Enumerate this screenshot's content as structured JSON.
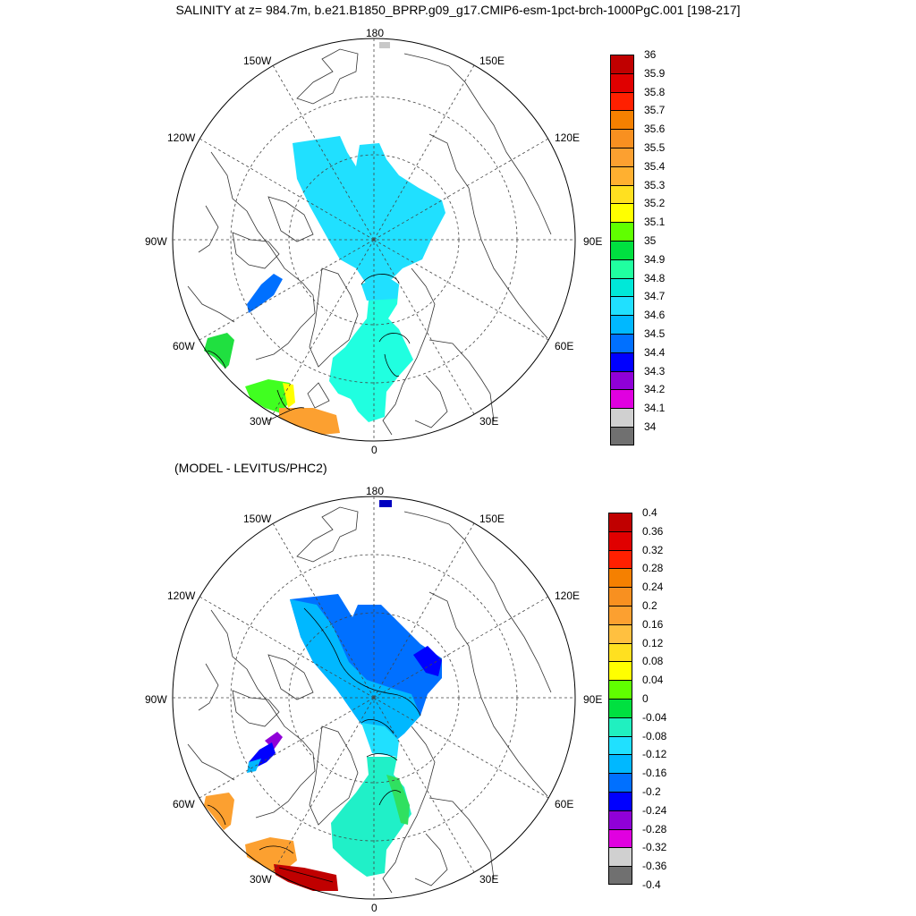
{
  "title": "SALINITY at z= 984.7m, b.e21.B1850_BPRP.g09_g17.CMIP6-esm-1pct-brch-1000PgC.001 [198-217]",
  "subtitle": "(MODEL - LEVITUS/PHC2)",
  "lon_labels": {
    "l180": "180",
    "l150w": "150W",
    "l150e": "150E",
    "l120w": "120W",
    "l120e": "120E",
    "l90w": "90W",
    "l90e": "90E",
    "l60w": "60W",
    "l60e": "60E",
    "l30w": "30W",
    "l30e": "30E",
    "l0": "0"
  },
  "colorbar_top": {
    "labels": [
      "36",
      "35.9",
      "35.8",
      "35.7",
      "35.6",
      "35.5",
      "35.4",
      "35.3",
      "35.2",
      "35.1",
      "35",
      "34.9",
      "34.8",
      "34.7",
      "34.6",
      "34.5",
      "34.4",
      "34.3",
      "34.2",
      "34.1",
      "34"
    ],
    "colors": [
      "#c00000",
      "#e00000",
      "#ff2000",
      "#f58000",
      "#f89020",
      "#fca030",
      "#ffb030",
      "#ffe020",
      "#ffff00",
      "#60ff00",
      "#00e040",
      "#20ffa0",
      "#00e8d8",
      "#20e0ff",
      "#00b8ff",
      "#0070ff",
      "#0000ff",
      "#9000d8",
      "#e000e0",
      "#d0d0d0",
      "#707070"
    ]
  },
  "colorbar_bottom": {
    "labels": [
      "0.4",
      "0.36",
      "0.32",
      "0.28",
      "0.24",
      "0.2",
      "0.16",
      "0.12",
      "0.08",
      "0.04",
      "0",
      "-0.04",
      "-0.08",
      "-0.12",
      "-0.16",
      "-0.2",
      "-0.24",
      "-0.28",
      "-0.32",
      "-0.36",
      "-0.4"
    ],
    "colors": [
      "#c00000",
      "#e00000",
      "#ff2000",
      "#f58000",
      "#f89020",
      "#fca030",
      "#ffc040",
      "#ffe020",
      "#ffff00",
      "#60ff00",
      "#00e040",
      "#20f0c0",
      "#20e0ff",
      "#00b8ff",
      "#0070ff",
      "#0000ff",
      "#9000d8",
      "#e000e0",
      "#d0d0d0",
      "#707070"
    ]
  }
}
